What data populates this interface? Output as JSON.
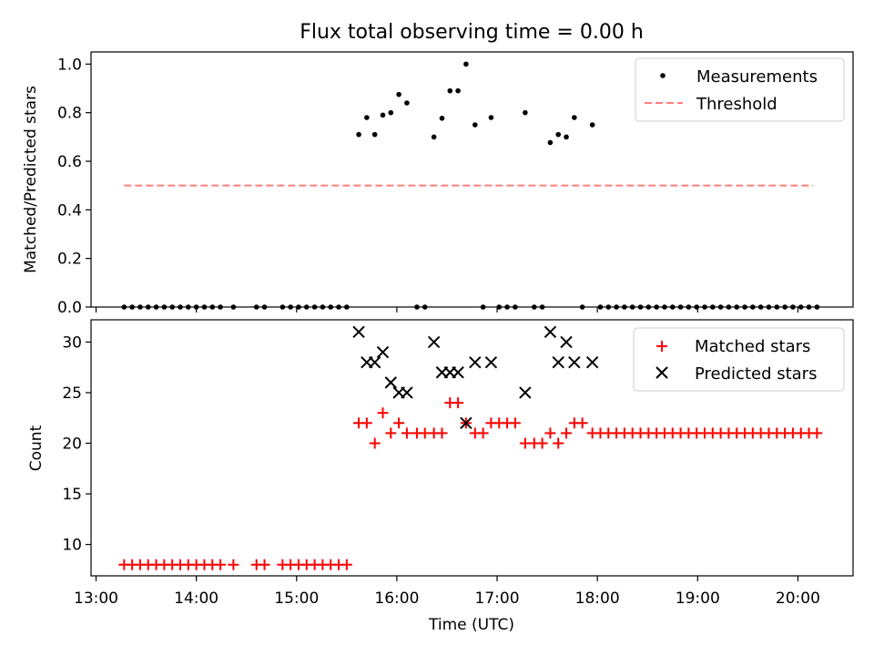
{
  "chart_data": [
    {
      "type": "scatter",
      "title": "Flux total observing time = 0.00 h",
      "xlabel": "",
      "ylabel": "Matched/Predicted stars",
      "xlim_hours": [
        12.95,
        20.55
      ],
      "ylim": [
        0,
        1.05
      ],
      "yticks": [
        "0.0",
        "0.2",
        "0.4",
        "0.6",
        "0.8",
        "1.0"
      ],
      "threshold": {
        "value": 0.5,
        "x_range_hours": [
          13.28,
          20.15
        ],
        "color": "#ff7f7f"
      },
      "legend": {
        "position": "top-right",
        "entries": [
          "Measurements",
          "Threshold"
        ]
      },
      "series": [
        {
          "name": "Measurements",
          "color": "#000000",
          "marker": "dot",
          "points": [
            [
              13.28,
              0
            ],
            [
              13.36,
              0
            ],
            [
              13.44,
              0
            ],
            [
              13.52,
              0
            ],
            [
              13.6,
              0
            ],
            [
              13.68,
              0
            ],
            [
              13.76,
              0
            ],
            [
              13.84,
              0
            ],
            [
              13.92,
              0
            ],
            [
              14.0,
              0
            ],
            [
              14.08,
              0
            ],
            [
              14.16,
              0
            ],
            [
              14.24,
              0
            ],
            [
              14.37,
              0
            ],
            [
              14.6,
              0
            ],
            [
              14.68,
              0
            ],
            [
              14.86,
              0
            ],
            [
              14.94,
              0
            ],
            [
              15.02,
              0
            ],
            [
              15.1,
              0
            ],
            [
              15.18,
              0
            ],
            [
              15.26,
              0
            ],
            [
              15.34,
              0
            ],
            [
              15.42,
              0
            ],
            [
              15.5,
              0
            ],
            [
              15.62,
              0.71
            ],
            [
              15.7,
              0.78
            ],
            [
              15.78,
              0.71
            ],
            [
              15.86,
              0.79
            ],
            [
              15.94,
              0.8
            ],
            [
              16.02,
              0.875
            ],
            [
              16.1,
              0.84
            ],
            [
              16.2,
              0
            ],
            [
              16.28,
              0
            ],
            [
              16.37,
              0.7
            ],
            [
              16.45,
              0.777
            ],
            [
              16.53,
              0.89
            ],
            [
              16.61,
              0.89
            ],
            [
              16.69,
              1.0
            ],
            [
              16.78,
              0.75
            ],
            [
              16.86,
              0
            ],
            [
              16.94,
              0.78
            ],
            [
              17.02,
              0
            ],
            [
              17.1,
              0
            ],
            [
              17.18,
              0
            ],
            [
              17.28,
              0.8
            ],
            [
              17.37,
              0
            ],
            [
              17.45,
              0
            ],
            [
              17.53,
              0.677
            ],
            [
              17.61,
              0.71
            ],
            [
              17.69,
              0.7
            ],
            [
              17.77,
              0.78
            ],
            [
              17.85,
              0
            ],
            [
              17.95,
              0.75
            ],
            [
              18.03,
              0
            ],
            [
              18.11,
              0
            ],
            [
              18.19,
              0
            ],
            [
              18.27,
              0
            ],
            [
              18.35,
              0
            ],
            [
              18.43,
              0
            ],
            [
              18.51,
              0
            ],
            [
              18.59,
              0
            ],
            [
              18.67,
              0
            ],
            [
              18.75,
              0
            ],
            [
              18.83,
              0
            ],
            [
              18.91,
              0
            ],
            [
              18.99,
              0
            ],
            [
              19.07,
              0
            ],
            [
              19.15,
              0
            ],
            [
              19.23,
              0
            ],
            [
              19.31,
              0
            ],
            [
              19.39,
              0
            ],
            [
              19.47,
              0
            ],
            [
              19.55,
              0
            ],
            [
              19.63,
              0
            ],
            [
              19.71,
              0
            ],
            [
              19.79,
              0
            ],
            [
              19.87,
              0
            ],
            [
              19.95,
              0
            ],
            [
              20.03,
              0
            ],
            [
              20.11,
              0
            ],
            [
              20.19,
              0
            ]
          ]
        }
      ]
    },
    {
      "type": "scatter",
      "title": "",
      "xlabel": "Time (UTC)",
      "ylabel": "Count",
      "xlim_hours": [
        12.95,
        20.55
      ],
      "ylim": [
        6.9,
        32.2
      ],
      "yticks": [
        "10",
        "15",
        "20",
        "25",
        "30"
      ],
      "xticks": [
        "13:00",
        "14:00",
        "15:00",
        "16:00",
        "17:00",
        "18:00",
        "19:00",
        "20:00"
      ],
      "legend": {
        "position": "top-right",
        "entries": [
          "Matched stars",
          "Predicted stars"
        ]
      },
      "series": [
        {
          "name": "Matched stars",
          "color": "#ff0000",
          "marker": "plus",
          "points": [
            [
              13.28,
              8
            ],
            [
              13.36,
              8
            ],
            [
              13.44,
              8
            ],
            [
              13.52,
              8
            ],
            [
              13.6,
              8
            ],
            [
              13.68,
              8
            ],
            [
              13.76,
              8
            ],
            [
              13.84,
              8
            ],
            [
              13.92,
              8
            ],
            [
              14.0,
              8
            ],
            [
              14.08,
              8
            ],
            [
              14.16,
              8
            ],
            [
              14.24,
              8
            ],
            [
              14.37,
              8
            ],
            [
              14.6,
              8
            ],
            [
              14.68,
              8
            ],
            [
              14.86,
              8
            ],
            [
              14.94,
              8
            ],
            [
              15.02,
              8
            ],
            [
              15.1,
              8
            ],
            [
              15.18,
              8
            ],
            [
              15.26,
              8
            ],
            [
              15.34,
              8
            ],
            [
              15.42,
              8
            ],
            [
              15.5,
              8
            ],
            [
              15.62,
              22
            ],
            [
              15.7,
              22
            ],
            [
              15.78,
              20
            ],
            [
              15.86,
              23
            ],
            [
              15.94,
              21
            ],
            [
              16.02,
              22
            ],
            [
              16.1,
              21
            ],
            [
              16.2,
              21
            ],
            [
              16.28,
              21
            ],
            [
              16.37,
              21
            ],
            [
              16.45,
              21
            ],
            [
              16.53,
              24
            ],
            [
              16.61,
              24
            ],
            [
              16.69,
              22
            ],
            [
              16.78,
              21
            ],
            [
              16.86,
              21
            ],
            [
              16.94,
              22
            ],
            [
              17.02,
              22
            ],
            [
              17.1,
              22
            ],
            [
              17.18,
              22
            ],
            [
              17.28,
              20
            ],
            [
              17.37,
              20
            ],
            [
              17.45,
              20
            ],
            [
              17.53,
              21
            ],
            [
              17.61,
              20
            ],
            [
              17.69,
              21
            ],
            [
              17.77,
              22
            ],
            [
              17.85,
              22
            ],
            [
              17.95,
              21
            ],
            [
              18.03,
              21
            ],
            [
              18.11,
              21
            ],
            [
              18.19,
              21
            ],
            [
              18.27,
              21
            ],
            [
              18.35,
              21
            ],
            [
              18.43,
              21
            ],
            [
              18.51,
              21
            ],
            [
              18.59,
              21
            ],
            [
              18.67,
              21
            ],
            [
              18.75,
              21
            ],
            [
              18.83,
              21
            ],
            [
              18.91,
              21
            ],
            [
              18.99,
              21
            ],
            [
              19.07,
              21
            ],
            [
              19.15,
              21
            ],
            [
              19.23,
              21
            ],
            [
              19.31,
              21
            ],
            [
              19.39,
              21
            ],
            [
              19.47,
              21
            ],
            [
              19.55,
              21
            ],
            [
              19.63,
              21
            ],
            [
              19.71,
              21
            ],
            [
              19.79,
              21
            ],
            [
              19.87,
              21
            ],
            [
              19.95,
              21
            ],
            [
              20.03,
              21
            ],
            [
              20.11,
              21
            ],
            [
              20.19,
              21
            ]
          ]
        },
        {
          "name": "Predicted stars",
          "color": "#000000",
          "marker": "x",
          "points": [
            [
              15.62,
              31
            ],
            [
              15.7,
              28
            ],
            [
              15.78,
              28
            ],
            [
              15.86,
              29
            ],
            [
              15.94,
              26
            ],
            [
              16.02,
              25
            ],
            [
              16.1,
              25
            ],
            [
              16.37,
              30
            ],
            [
              16.45,
              27
            ],
            [
              16.53,
              27
            ],
            [
              16.61,
              27
            ],
            [
              16.69,
              22
            ],
            [
              16.78,
              28
            ],
            [
              16.94,
              28
            ],
            [
              17.28,
              25
            ],
            [
              17.53,
              31
            ],
            [
              17.61,
              28
            ],
            [
              17.69,
              30
            ],
            [
              17.77,
              28
            ],
            [
              17.95,
              28
            ]
          ]
        }
      ]
    }
  ]
}
